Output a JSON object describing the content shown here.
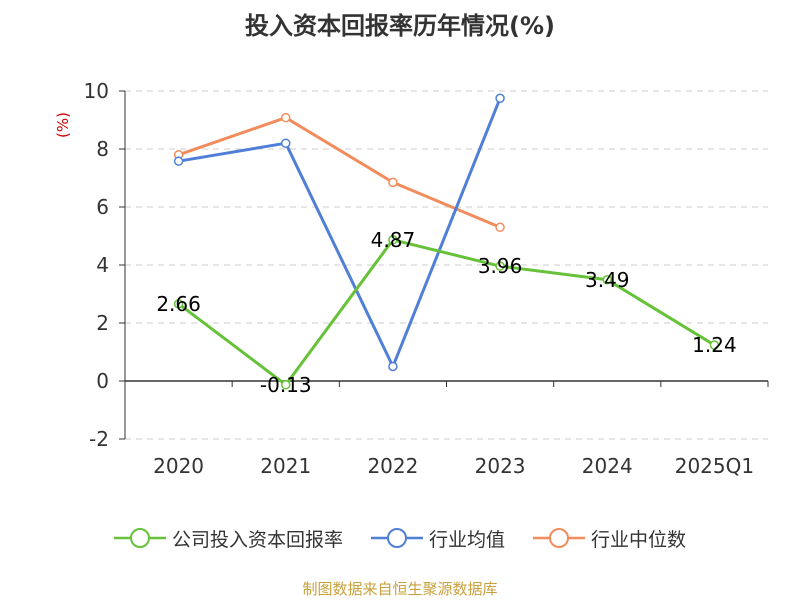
{
  "chart_data": {
    "type": "line",
    "title": "投入资本回报率历年情况(%)",
    "ylabel": "(%)",
    "categories": [
      "2020",
      "2021",
      "2022",
      "2023",
      "2024",
      "2025Q1"
    ],
    "ylim": [
      -2,
      10
    ],
    "yticks": [
      -2,
      0,
      2,
      4,
      6,
      8,
      10
    ],
    "grid": true,
    "legend_position": "bottom",
    "series": [
      {
        "name": "公司投入资本回报率",
        "color": "#67c23a",
        "values": [
          2.66,
          -0.13,
          4.87,
          3.96,
          3.49,
          1.24
        ],
        "labels": [
          "2.66",
          "-0.13",
          "4.87",
          "3.96",
          "3.49",
          "1.24"
        ]
      },
      {
        "name": "行业均值",
        "color": "#4f7fd6",
        "values": [
          7.58,
          8.2,
          0.5,
          9.75,
          null,
          null
        ]
      },
      {
        "name": "行业中位数",
        "color": "#f28c5c",
        "values": [
          7.8,
          9.08,
          6.85,
          5.3,
          null,
          null
        ]
      }
    ]
  },
  "source": "制图数据来自恒生聚源数据库"
}
